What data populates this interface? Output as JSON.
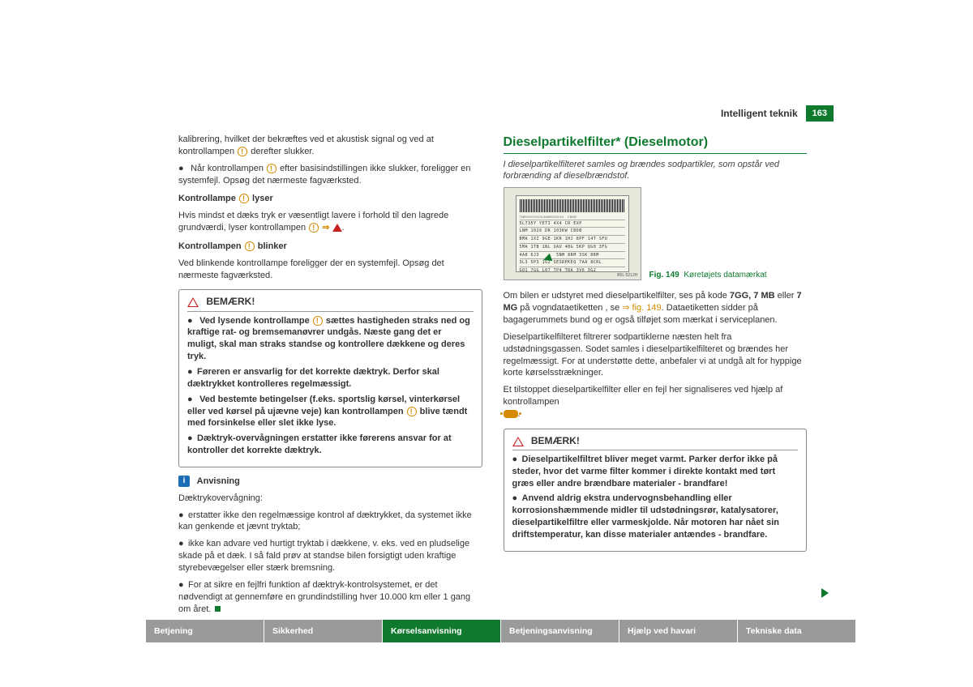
{
  "header": {
    "section": "Intelligent teknik",
    "page": "163"
  },
  "left": {
    "intro": "kalibrering, hvilket der bekræftes ved et akustisk signal og ved at kontrollampen",
    "intro2": "derefter slukker.",
    "b1": "Når kontrollampen",
    "b1b": "efter basisindstillingen ikke slukker, foreligger en systemfejl. Opsøg det nærmeste fagværksted.",
    "h1": "Kontrollampe",
    "h1b": "lyser",
    "p1": "Hvis mindst et dæks tryk er væsentligt lavere i forhold til den lagrede grundværdi, lyser kontrollampen",
    "h2": "Kontrollampen",
    "h2b": "blinker",
    "p2": "Ved blinkende kontrollampe foreligger der en systemfejl. Opsøg det nærmeste fagværksted.",
    "notice1": {
      "title": "BEMÆRK!",
      "items": [
        {
          "pre": "Ved lysende kontrollampe",
          "post": "sættes hastigheden straks ned og kraftige rat- og bremsemanøvrer undgås. Næste gang det er muligt, skal man straks standse og kontrollere dækkene og deres tryk."
        },
        {
          "text": "Føreren er ansvarlig for det korrekte dæktryk. Derfor skal dæktrykket kontrolleres regelmæssigt."
        },
        {
          "pre": "Ved bestemte betingelser (f.eks. sportslig kørsel, vinterkørsel eller ved kørsel på ujævne veje) kan kontrollampen",
          "post": "blive tændt med forsinkelse eller slet ikke lyse."
        },
        {
          "text": "Dæktryk-overvågningen erstatter ikke førerens ansvar for at kontroller det korrekte dæktryk."
        }
      ]
    },
    "advice_title": "Anvisning",
    "advice_intro": "Dæktrykovervågning:",
    "advice": [
      "erstatter ikke den regelmæssige kontrol af dæktrykket, da systemet ikke kan genkende et jævnt tryktab;",
      "ikke kan advare ved hurtigt tryktab i dækkene, v. eks. ved en pludselige skade på et dæk. I så fald prøv at standse bilen forsigtigt uden kraftige styrebevægelser eller stærk bremsning.",
      "For at sikre en fejlfri funktion af dæktryk-kontrolsystemet, er det nødvendigt at gennemføre en grundindstilling hver 10.000 km eller 1 gang om året."
    ]
  },
  "right": {
    "title": "Dieselpartikelfilter* (Dieselmotor)",
    "subtitle": "I dieselpartikelfilteret samles og brændes sodpartikler, som opstår ved forbrænding af dieselbrændstof.",
    "fig_num": "Fig. 149",
    "fig_caption": "Køretøjets datamærkat",
    "plate": {
      "line1": "5L735Y YETI    4X4 CR    EXP",
      "line2": "LNM 1026    DR 103KW CBDB",
      "img_code": "B5L-5212H"
    },
    "p1a": "Om bilen er udstyret med dieselpartikelfilter, ses på kode ",
    "codes": "7GG, 7 MB",
    "codes_or": " eller ",
    "codes2": "7 MG",
    "p1b": " på vogndataetiketten , se ",
    "figref": "⇒ fig. 149",
    "p1c": ". Dataetiketten sidder på bagagerummets bund og er også tilføjet som mærkat i serviceplanen.",
    "p2": "Dieselpartikelfilteret filtrerer sodpartiklerne næsten helt fra udstødningsgassen. Sodet samles i dieselpartikelfilteret og brændes her regelmæssigt. For at understøtte dette, anbefaler vi at undgå alt for hyppige korte kørselsstrækninger.",
    "p3": "Et tilstoppet dieselpartikelfilter eller en fejl her signaliseres ved hjælp af kontrollampen",
    "notice2": {
      "title": "BEMÆRK!",
      "items": [
        "Dieselpartikelfiltret bliver meget varmt. Parker derfor ikke på steder, hvor det varme filter kommer i direkte kontakt med tørt græs eller andre brændbare materialer - brandfare!",
        "Anvend aldrig ekstra undervognsbehandling eller korrosionshæmmende midler til udstødningsrør, katalysatorer, dieselpartikelfiltre eller varmeskjolde. Når motoren har nået sin driftstemperatur, kan disse materialer antændes - brandfare."
      ]
    }
  },
  "tabs": [
    "Betjening",
    "Sikkerhed",
    "Kørselsanvisning",
    "Betjeningsanvisning",
    "Hjælp ved havari",
    "Tekniske data"
  ],
  "active_tab_index": 2
}
